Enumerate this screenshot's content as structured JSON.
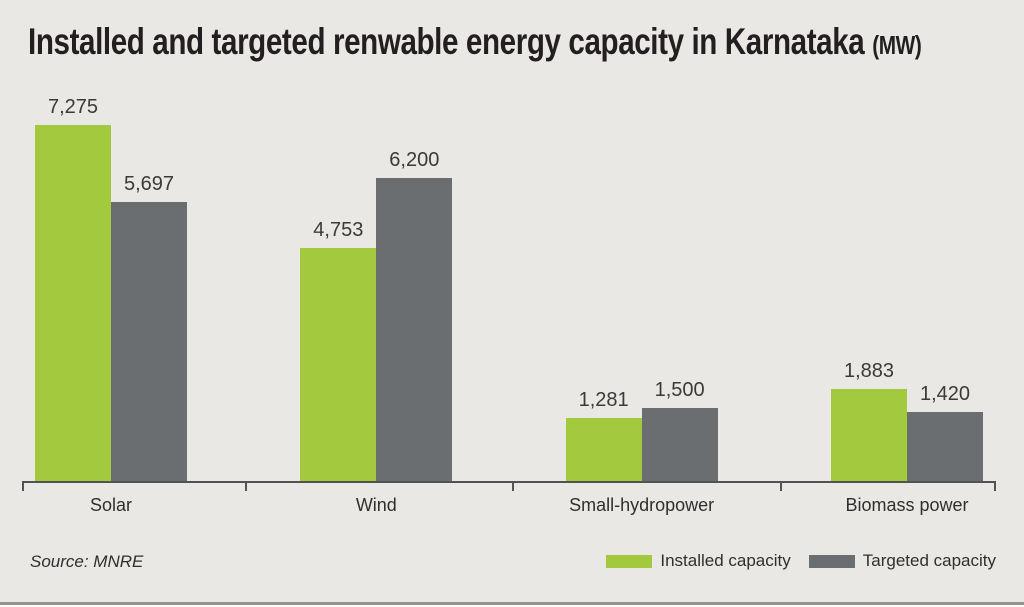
{
  "title": {
    "main": "Installed and targeted renwable energy capacity in Karnataka",
    "unit": "(MW)"
  },
  "source": "Source: MNRE",
  "legend": [
    {
      "label": "Installed capacity",
      "color": "#a3c93f"
    },
    {
      "label": "Targeted capacity",
      "color": "#6b6e70"
    }
  ],
  "colors": {
    "background": "#eae8e5",
    "axis": "#515254",
    "text": "#2f2f2f"
  },
  "chart_data": {
    "type": "bar",
    "title": "Installed and targeted renwable energy capacity in Karnataka (MW)",
    "categories": [
      "Solar",
      "Wind",
      "Small-hydropower",
      "Biomass power"
    ],
    "series": [
      {
        "name": "Installed capacity",
        "color": "#a3c93f",
        "values": [
          7275,
          4753,
          1281,
          1883
        ],
        "labels": [
          "7,275",
          "4,753",
          "1,281",
          "1,883"
        ]
      },
      {
        "name": "Targeted capacity",
        "color": "#6b6e70",
        "values": [
          5697,
          6200,
          1500,
          1420
        ],
        "labels": [
          "5,697",
          "6,200",
          "1,500",
          "1,420"
        ]
      }
    ],
    "xlabel": "",
    "ylabel": "",
    "ylim": [
      0,
      7275
    ],
    "grid": false,
    "y_axis_visible": false,
    "legend_position": "bottom-right",
    "value_labels": "above-bars"
  }
}
